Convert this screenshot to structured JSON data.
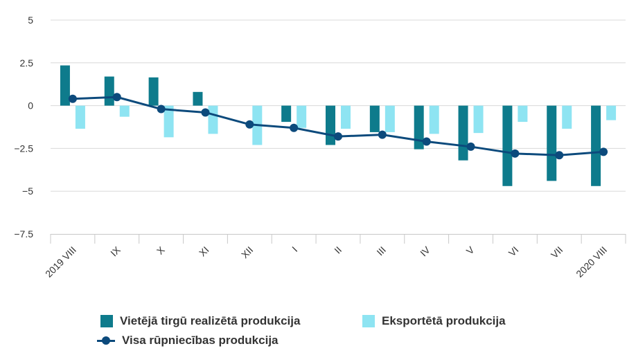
{
  "chart_data": {
    "type": "bar",
    "categories": [
      "2019 VIII",
      "IX",
      "X",
      "XI",
      "XII",
      "I",
      "II",
      "III",
      "IV",
      "V",
      "VI",
      "VII",
      "2020 VIII"
    ],
    "series": [
      {
        "name": "Vietējā tirgū realizētā produkcija",
        "type": "bar",
        "color": "#0e7b8c",
        "values": [
          2.35,
          1.7,
          1.65,
          0.8,
          0,
          -0.95,
          -2.3,
          -1.55,
          -2.55,
          -3.2,
          -4.7,
          -4.4,
          -4.7
        ]
      },
      {
        "name": "Eksportētā produkcija",
        "type": "bar",
        "color": "#8ee4f2",
        "values": [
          -1.35,
          -0.65,
          -1.85,
          -1.65,
          -2.3,
          -1.3,
          -1.35,
          -1.55,
          -1.65,
          -1.6,
          -0.95,
          -1.35,
          -0.85
        ]
      },
      {
        "name": "Visa rūpniecības produkcija",
        "type": "line",
        "color": "#0c4a7c",
        "values": [
          0.4,
          0.5,
          -0.2,
          -0.4,
          -1.1,
          -1.3,
          -1.8,
          -1.7,
          -2.1,
          -2.4,
          -2.8,
          -2.9,
          -2.7
        ]
      }
    ],
    "yticks": [
      "5",
      "2.5",
      "0",
      "−2.5",
      "−5",
      "−7.5"
    ],
    "ytick_values": [
      5,
      2.5,
      0,
      -2.5,
      -5,
      -7.5
    ],
    "ylim": [
      -7.5,
      5
    ],
    "grid": true,
    "legend_position": "bottom",
    "title": "",
    "xlabel": "",
    "ylabel": ""
  }
}
